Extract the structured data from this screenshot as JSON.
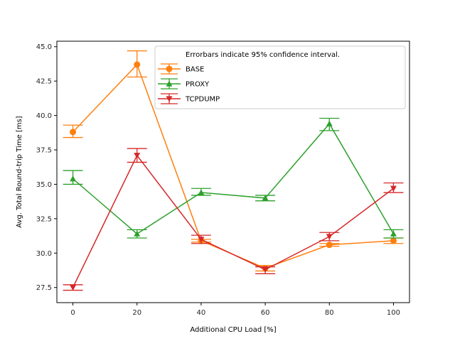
{
  "chart_data": {
    "type": "line",
    "title": "",
    "xlabel": "Additional CPU Load [%]",
    "ylabel": "Avg. Total Round-trip Time [ms]",
    "x": [
      0,
      20,
      40,
      60,
      80,
      100
    ],
    "xlim": [
      -5,
      105
    ],
    "ylim": [
      26.4,
      45.4
    ],
    "xticks": [
      0,
      20,
      40,
      60,
      80,
      100
    ],
    "yticks": [
      27.5,
      30.0,
      32.5,
      35.0,
      37.5,
      40.0,
      42.5,
      45.0
    ],
    "ytick_labels": [
      "27.5",
      "30.0",
      "32.5",
      "35.0",
      "37.5",
      "40.0",
      "42.5",
      "45.0"
    ],
    "grid": false,
    "legend_title": "Errorbars indicate 95% confidence interval.",
    "legend_position": "top-right",
    "series": [
      {
        "name": "BASE",
        "color": "#ff7f0e",
        "marker": "circle",
        "values": [
          38.8,
          43.7,
          30.9,
          28.9,
          30.6,
          30.9
        ],
        "err_low": [
          38.4,
          42.8,
          30.8,
          28.7,
          30.5,
          30.7
        ],
        "err_high": [
          39.3,
          44.7,
          31.0,
          29.1,
          30.7,
          31.1
        ]
      },
      {
        "name": "PROXY",
        "color": "#2ca02c",
        "marker": "triangle-up",
        "values": [
          35.4,
          31.4,
          34.4,
          34.0,
          39.4,
          31.4
        ],
        "err_low": [
          35.0,
          31.1,
          34.2,
          33.8,
          38.9,
          31.1
        ],
        "err_high": [
          36.0,
          31.7,
          34.7,
          34.2,
          39.8,
          31.7
        ]
      },
      {
        "name": "TCPDUMP",
        "color": "#d62728",
        "marker": "triangle-down",
        "values": [
          27.5,
          37.1,
          31.0,
          28.8,
          31.2,
          34.7
        ],
        "err_low": [
          27.3,
          36.6,
          30.7,
          28.5,
          30.9,
          34.4
        ],
        "err_high": [
          27.7,
          37.6,
          31.3,
          29.0,
          31.5,
          35.1
        ]
      }
    ]
  }
}
